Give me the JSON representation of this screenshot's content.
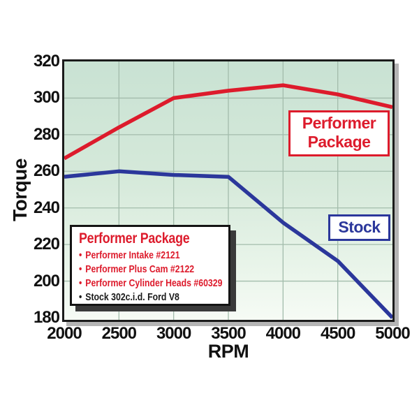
{
  "chart_data": {
    "type": "line",
    "x_label": "RPM",
    "y_label": "Torque",
    "x": [
      2000,
      2500,
      3000,
      3500,
      4000,
      4500,
      5000
    ],
    "x_ticks": [
      "2000",
      "2500",
      "3000",
      "3500",
      "4000",
      "4500",
      "5000"
    ],
    "y_ticks": [
      "320",
      "300",
      "280",
      "260",
      "240",
      "220",
      "200",
      "180"
    ],
    "xlim": [
      2000,
      5000
    ],
    "ylim": [
      180,
      320
    ],
    "grid": true,
    "legend_position": "lower-left",
    "series": [
      {
        "name": "Performer Package",
        "color": "#dd1b2c",
        "values": [
          267,
          284,
          300,
          304,
          307,
          302,
          295
        ]
      },
      {
        "name": "Stock",
        "color": "#2b379b",
        "values": [
          257,
          260,
          258,
          257,
          232,
          211,
          180
        ]
      }
    ]
  },
  "annotations": {
    "performer": {
      "line1": "Performer",
      "line2": "Package"
    },
    "stock": {
      "label": "Stock"
    }
  },
  "legend": {
    "title": "Performer Package",
    "bullet": "•",
    "items": [
      {
        "text": "Performer Intake #2121",
        "color": "#dd1b2c"
      },
      {
        "text": "Performer Plus Cam #2122",
        "color": "#dd1b2c"
      },
      {
        "text": "Performer Cylinder Heads #60329",
        "color": "#dd1b2c"
      },
      {
        "text": "Stock 302c.i.d. Ford V8",
        "color": "#1a1a1a"
      }
    ]
  },
  "colors": {
    "performer_red": "#dd1b2c",
    "stock_blue": "#2b379b",
    "grid": "#a3bcac",
    "plot_border": "#1b1b1b",
    "text": "#111111"
  }
}
